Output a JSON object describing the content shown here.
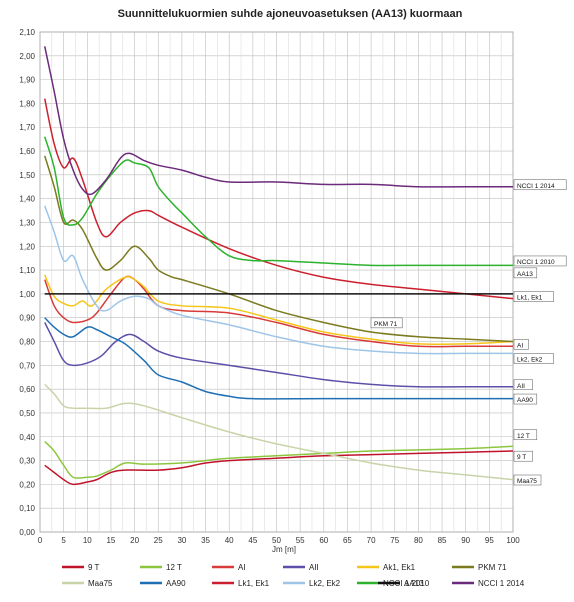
{
  "chart_data": {
    "type": "line",
    "title": "Suunnittelukuormien suhde ajoneuvoasetuksen (AA13) kuormaan",
    "xlabel": "Jm [m]",
    "ylabel": "",
    "xlim": [
      0,
      100
    ],
    "ylim": [
      0.0,
      2.1
    ],
    "x_ticks": [
      "0",
      "5",
      "10",
      "15",
      "20",
      "25",
      "30",
      "35",
      "40",
      "45",
      "50",
      "55",
      "60",
      "65",
      "70",
      "75",
      "80",
      "85",
      "90",
      "95",
      "100"
    ],
    "y_ticks": [
      "0,00",
      "0,10",
      "0,20",
      "0,30",
      "0,40",
      "0,50",
      "0,60",
      "0,70",
      "0,80",
      "0,90",
      "1,00",
      "1,10",
      "1,20",
      "1,30",
      "1,40",
      "1,50",
      "1,60",
      "1,70",
      "1,80",
      "1,90",
      "2,00",
      "2,10"
    ],
    "grid": true,
    "legend_position": "bottom",
    "series": [
      {
        "name": "9 T",
        "color": "#c0122a",
        "end_label": "9 T",
        "points": [
          [
            1,
            0.28
          ],
          [
            3,
            0.25
          ],
          [
            5,
            0.22
          ],
          [
            7,
            0.2
          ],
          [
            10,
            0.21
          ],
          [
            12,
            0.22
          ],
          [
            15,
            0.25
          ],
          [
            18,
            0.26
          ],
          [
            25,
            0.26
          ],
          [
            30,
            0.27
          ],
          [
            35,
            0.29
          ],
          [
            40,
            0.3
          ],
          [
            50,
            0.31
          ],
          [
            60,
            0.32
          ],
          [
            70,
            0.325
          ],
          [
            80,
            0.33
          ],
          [
            90,
            0.335
          ],
          [
            100,
            0.34
          ]
        ]
      },
      {
        "name": "12 T",
        "color": "#8cc63f",
        "end_label": "12 T",
        "points": [
          [
            1,
            0.38
          ],
          [
            3,
            0.34
          ],
          [
            5,
            0.28
          ],
          [
            7,
            0.23
          ],
          [
            10,
            0.23
          ],
          [
            12,
            0.235
          ],
          [
            15,
            0.26
          ],
          [
            18,
            0.29
          ],
          [
            22,
            0.285
          ],
          [
            30,
            0.29
          ],
          [
            35,
            0.3
          ],
          [
            40,
            0.31
          ],
          [
            50,
            0.32
          ],
          [
            60,
            0.33
          ],
          [
            70,
            0.34
          ],
          [
            80,
            0.345
          ],
          [
            90,
            0.35
          ],
          [
            100,
            0.36
          ]
        ]
      },
      {
        "name": "AI",
        "color": "#d93a3a",
        "end_label": "AI",
        "points": [
          [
            1,
            1.06
          ],
          [
            3,
            0.95
          ],
          [
            5,
            0.9
          ],
          [
            7,
            0.88
          ],
          [
            10,
            0.89
          ],
          [
            12,
            0.92
          ],
          [
            15,
            1.0
          ],
          [
            18,
            1.07
          ],
          [
            20,
            1.06
          ],
          [
            22,
            1.02
          ],
          [
            25,
            0.95
          ],
          [
            30,
            0.93
          ],
          [
            40,
            0.92
          ],
          [
            50,
            0.88
          ],
          [
            60,
            0.83
          ],
          [
            70,
            0.8
          ],
          [
            80,
            0.78
          ],
          [
            90,
            0.78
          ],
          [
            100,
            0.78
          ]
        ]
      },
      {
        "name": "AII",
        "color": "#5b4fa8",
        "end_label": "AII",
        "points": [
          [
            1,
            0.88
          ],
          [
            3,
            0.8
          ],
          [
            5,
            0.72
          ],
          [
            7,
            0.7
          ],
          [
            10,
            0.71
          ],
          [
            13,
            0.74
          ],
          [
            16,
            0.8
          ],
          [
            19,
            0.83
          ],
          [
            22,
            0.8
          ],
          [
            25,
            0.76
          ],
          [
            30,
            0.73
          ],
          [
            40,
            0.7
          ],
          [
            50,
            0.67
          ],
          [
            60,
            0.64
          ],
          [
            70,
            0.62
          ],
          [
            80,
            0.61
          ],
          [
            90,
            0.61
          ],
          [
            100,
            0.61
          ]
        ]
      },
      {
        "name": "Ak1, Ek1",
        "color": "#f5c518",
        "end_label": "",
        "points": [
          [
            1,
            1.08
          ],
          [
            3,
            0.99
          ],
          [
            5,
            0.96
          ],
          [
            7,
            0.95
          ],
          [
            9,
            0.97
          ],
          [
            11,
            0.95
          ],
          [
            14,
            1.02
          ],
          [
            18,
            1.07
          ],
          [
            20,
            1.06
          ],
          [
            22,
            1.03
          ],
          [
            25,
            0.97
          ],
          [
            30,
            0.95
          ],
          [
            40,
            0.94
          ],
          [
            50,
            0.89
          ],
          [
            60,
            0.84
          ],
          [
            70,
            0.81
          ],
          [
            80,
            0.79
          ],
          [
            90,
            0.79
          ],
          [
            100,
            0.8
          ]
        ]
      },
      {
        "name": "PKM 71",
        "color": "#7a7a1e",
        "end_label": "PKM 71",
        "points": [
          [
            1,
            1.58
          ],
          [
            3,
            1.45
          ],
          [
            5,
            1.3
          ],
          [
            7,
            1.31
          ],
          [
            9,
            1.27
          ],
          [
            12,
            1.15
          ],
          [
            14,
            1.1
          ],
          [
            17,
            1.14
          ],
          [
            20,
            1.2
          ],
          [
            23,
            1.15
          ],
          [
            25,
            1.1
          ],
          [
            28,
            1.07
          ],
          [
            30,
            1.06
          ],
          [
            40,
            1.0
          ],
          [
            50,
            0.93
          ],
          [
            60,
            0.88
          ],
          [
            70,
            0.84
          ],
          [
            80,
            0.82
          ],
          [
            90,
            0.81
          ],
          [
            100,
            0.8
          ]
        ]
      },
      {
        "name": "Maa75",
        "color": "#c8d4a8",
        "end_label": "Maa75",
        "points": [
          [
            1,
            0.62
          ],
          [
            3,
            0.58
          ],
          [
            5,
            0.53
          ],
          [
            7,
            0.52
          ],
          [
            10,
            0.52
          ],
          [
            14,
            0.52
          ],
          [
            18,
            0.54
          ],
          [
            22,
            0.53
          ],
          [
            30,
            0.48
          ],
          [
            40,
            0.42
          ],
          [
            50,
            0.37
          ],
          [
            60,
            0.33
          ],
          [
            70,
            0.29
          ],
          [
            80,
            0.26
          ],
          [
            90,
            0.24
          ],
          [
            100,
            0.22
          ]
        ]
      },
      {
        "name": "AA90",
        "color": "#1f6fb5",
        "end_label": "AA90",
        "points": [
          [
            1,
            0.9
          ],
          [
            3,
            0.86
          ],
          [
            5,
            0.83
          ],
          [
            7,
            0.82
          ],
          [
            10,
            0.86
          ],
          [
            12,
            0.85
          ],
          [
            15,
            0.82
          ],
          [
            18,
            0.79
          ],
          [
            22,
            0.72
          ],
          [
            25,
            0.66
          ],
          [
            30,
            0.63
          ],
          [
            35,
            0.59
          ],
          [
            40,
            0.57
          ],
          [
            45,
            0.56
          ],
          [
            60,
            0.56
          ],
          [
            80,
            0.56
          ],
          [
            100,
            0.56
          ]
        ]
      },
      {
        "name": "Lk1, Ek1",
        "color": "#cc1f2d",
        "end_label": "Lk1, Ek1",
        "points": [
          [
            1,
            1.82
          ],
          [
            3,
            1.63
          ],
          [
            5,
            1.53
          ],
          [
            7,
            1.57
          ],
          [
            9,
            1.48
          ],
          [
            12,
            1.3
          ],
          [
            14,
            1.24
          ],
          [
            17,
            1.3
          ],
          [
            20,
            1.34
          ],
          [
            23,
            1.35
          ],
          [
            25,
            1.33
          ],
          [
            30,
            1.28
          ],
          [
            40,
            1.19
          ],
          [
            50,
            1.12
          ],
          [
            60,
            1.07
          ],
          [
            70,
            1.04
          ],
          [
            80,
            1.02
          ],
          [
            90,
            1.0
          ],
          [
            100,
            0.98
          ]
        ]
      },
      {
        "name": "Lk2, Ek2",
        "color": "#9ec5e8",
        "end_label": "Lk2, Ek2",
        "points": [
          [
            1,
            1.37
          ],
          [
            3,
            1.26
          ],
          [
            5,
            1.14
          ],
          [
            7,
            1.16
          ],
          [
            9,
            1.06
          ],
          [
            12,
            0.95
          ],
          [
            14,
            0.93
          ],
          [
            17,
            0.97
          ],
          [
            20,
            0.99
          ],
          [
            23,
            0.98
          ],
          [
            25,
            0.95
          ],
          [
            30,
            0.91
          ],
          [
            40,
            0.87
          ],
          [
            50,
            0.82
          ],
          [
            60,
            0.78
          ],
          [
            70,
            0.76
          ],
          [
            80,
            0.75
          ],
          [
            90,
            0.75
          ],
          [
            100,
            0.75
          ]
        ]
      },
      {
        "name": "NCCI 1 2010",
        "color": "#2db22d",
        "end_label": "NCCI 1 2010",
        "points": [
          [
            1,
            1.66
          ],
          [
            3,
            1.53
          ],
          [
            5,
            1.32
          ],
          [
            7,
            1.29
          ],
          [
            9,
            1.32
          ],
          [
            12,
            1.42
          ],
          [
            15,
            1.5
          ],
          [
            18,
            1.56
          ],
          [
            20,
            1.55
          ],
          [
            23,
            1.53
          ],
          [
            25,
            1.45
          ],
          [
            28,
            1.38
          ],
          [
            30,
            1.34
          ],
          [
            35,
            1.24
          ],
          [
            40,
            1.16
          ],
          [
            45,
            1.14
          ],
          [
            50,
            1.14
          ],
          [
            60,
            1.13
          ],
          [
            70,
            1.12
          ],
          [
            80,
            1.12
          ],
          [
            90,
            1.12
          ],
          [
            100,
            1.12
          ]
        ]
      },
      {
        "name": "AA13",
        "color": "#111111",
        "end_label": "AA13",
        "points": [
          [
            1,
            1.0
          ],
          [
            100,
            1.0
          ]
        ]
      },
      {
        "name": "NCCI 1 2014",
        "color": "#6b2a7a",
        "end_label": "NCCI 1 2014",
        "points": [
          [
            1,
            2.04
          ],
          [
            3,
            1.85
          ],
          [
            5,
            1.65
          ],
          [
            7,
            1.52
          ],
          [
            9,
            1.44
          ],
          [
            11,
            1.42
          ],
          [
            14,
            1.48
          ],
          [
            17,
            1.57
          ],
          [
            19,
            1.59
          ],
          [
            22,
            1.56
          ],
          [
            25,
            1.54
          ],
          [
            30,
            1.52
          ],
          [
            35,
            1.49
          ],
          [
            40,
            1.47
          ],
          [
            50,
            1.47
          ],
          [
            60,
            1.46
          ],
          [
            70,
            1.46
          ],
          [
            80,
            1.45
          ],
          [
            90,
            1.45
          ],
          [
            100,
            1.45
          ]
        ]
      }
    ]
  }
}
